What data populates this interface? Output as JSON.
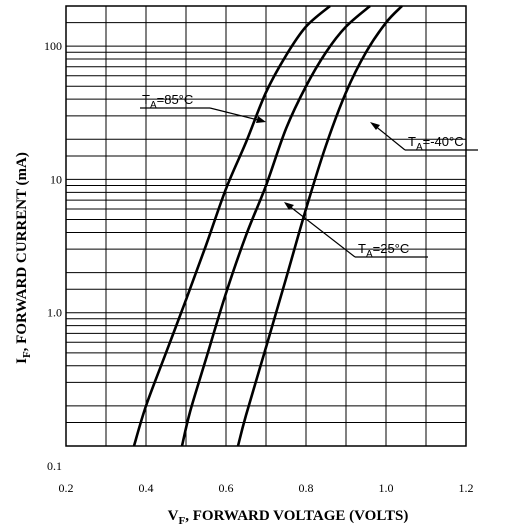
{
  "chart_data": {
    "type": "line",
    "x_scale": "linear",
    "y_scale": "log",
    "xlim": [
      0.2,
      1.2
    ],
    "ylim": [
      0.1,
      200
    ],
    "x_ticks": [
      {
        "value": 0.2,
        "label": "0.2"
      },
      {
        "value": 0.4,
        "label": "0.4"
      },
      {
        "value": 0.6,
        "label": "0.6"
      },
      {
        "value": 0.8,
        "label": "0.8"
      },
      {
        "value": 1.0,
        "label": "1.0"
      },
      {
        "value": 1.2,
        "label": "1.2"
      }
    ],
    "y_ticks": [
      {
        "value": 0.1,
        "label": "0.1"
      },
      {
        "value": 1.0,
        "label": "1.0"
      },
      {
        "value": 10,
        "label": "10"
      },
      {
        "value": 100,
        "label": "100"
      }
    ],
    "x_grid": [
      0.2,
      0.3,
      0.4,
      0.5,
      0.6,
      0.7,
      0.8,
      0.9,
      1.0,
      1.1,
      1.2
    ],
    "y_grid": [
      0.1,
      0.15,
      0.2,
      0.3,
      0.4,
      0.5,
      0.6,
      0.7,
      0.8,
      0.9,
      1.0,
      1.5,
      2,
      3,
      4,
      5,
      6,
      7,
      8,
      9,
      10,
      15,
      20,
      30,
      40,
      50,
      60,
      70,
      80,
      90,
      100,
      150,
      200
    ],
    "xlabel_main": "V",
    "xlabel_sub": "F",
    "xlabel_rest": ", FORWARD VOLTAGE (VOLTS)",
    "ylabel_main": "I",
    "ylabel_sub": "F",
    "ylabel_rest": ", FORWARD CURRENT (mA)",
    "grid": true,
    "series": [
      {
        "name": "85°C",
        "annotation": {
          "main": "T",
          "sub": "A",
          "rest": "=85°C"
        },
        "x": [
          0.37,
          0.4,
          0.45,
          0.5,
          0.55,
          0.6,
          0.65,
          0.7,
          0.75,
          0.8,
          0.86
        ],
        "y": [
          0.1,
          0.2,
          0.5,
          1.25,
          3.2,
          8.5,
          19,
          45,
          85,
          140,
          200
        ]
      },
      {
        "name": "25°C",
        "annotation": {
          "main": "T",
          "sub": "A",
          "rest": "=25°C"
        },
        "x": [
          0.49,
          0.51,
          0.55,
          0.6,
          0.65,
          0.7,
          0.75,
          0.8,
          0.85,
          0.9,
          0.96
        ],
        "y": [
          0.1,
          0.18,
          0.45,
          1.4,
          3.8,
          9,
          24,
          50,
          90,
          140,
          200
        ]
      },
      {
        "name": "-40°C",
        "annotation": {
          "main": "T",
          "sub": "A",
          "rest": "=-40°C"
        },
        "x": [
          0.63,
          0.65,
          0.7,
          0.75,
          0.8,
          0.85,
          0.9,
          0.95,
          1.0,
          1.04
        ],
        "y": [
          0.1,
          0.17,
          0.55,
          1.8,
          6,
          18,
          45,
          90,
          150,
          200
        ]
      }
    ]
  }
}
